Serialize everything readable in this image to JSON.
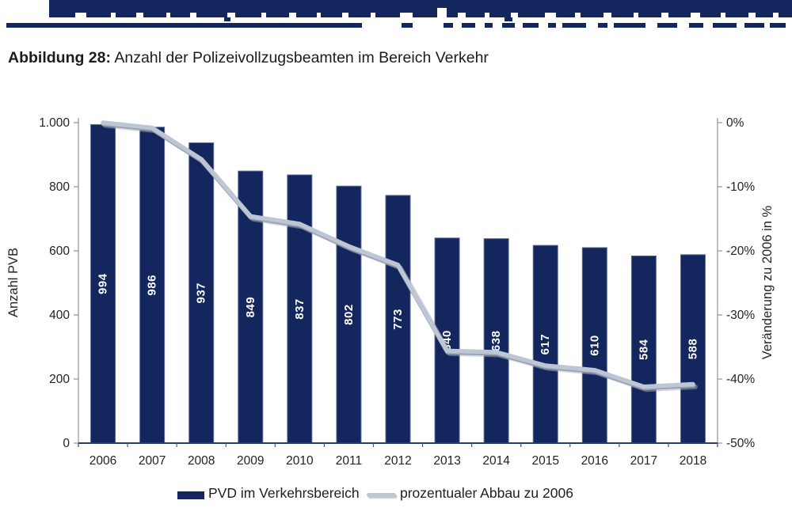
{
  "title": {
    "prefix": "Abbildung 28:",
    "text": "Anzahl der Polizeivollzugsbeamten im Bereich Verkehr"
  },
  "banner": {
    "color": "#14265e"
  },
  "chart_data": {
    "type": "bar+line",
    "title": "Anzahl der Polizeivollzugsbeamten im Bereich Verkehr",
    "categories": [
      "2006",
      "2007",
      "2008",
      "2009",
      "2010",
      "2011",
      "2012",
      "2013",
      "2014",
      "2015",
      "2016",
      "2017",
      "2018"
    ],
    "series": [
      {
        "name": "PVD im Verkehrsbereich",
        "type": "bar",
        "axis": "left",
        "color": "#14265e",
        "values": [
          994,
          986,
          937,
          849,
          837,
          802,
          773,
          640,
          638,
          617,
          610,
          584,
          588
        ],
        "data_label_style": "white bold, rotated 90°, inside center"
      },
      {
        "name": "prozentualer Abbau zu 2006",
        "type": "line",
        "axis": "right",
        "color": "#bdc6d4",
        "values_percent": [
          0,
          -0.8,
          -5.7,
          -14.6,
          -15.8,
          -19.3,
          -22.2,
          -35.6,
          -35.8,
          -37.9,
          -38.6,
          -41.2,
          -40.8
        ]
      }
    ],
    "left_axis": {
      "title": "Anzahl PVB",
      "min": 0,
      "max": 1000,
      "tick_labels": [
        "1.000",
        "800",
        "600",
        "400",
        "200",
        "0"
      ]
    },
    "right_axis": {
      "title": "Veränderung zu 2006 in %",
      "min": -50,
      "max": 0,
      "tick_labels": [
        "0%",
        "-10%",
        "-20%",
        "-30%",
        "-40%",
        "-50%"
      ]
    },
    "legend": {
      "position": "bottom",
      "items": [
        "PVD im Verkehrsbereich",
        "prozentualer Abbau zu 2006"
      ]
    },
    "grid": "off"
  },
  "colors": {
    "bar": "#14265e",
    "bar_edge": "#5d6b96",
    "line": "#bdc6d4",
    "line_shadow": "#a9aeb7",
    "line_edge": "#95a0b0",
    "axis_side": "#8e9399",
    "axis_bottom": "#2c3c64",
    "text": "#232323",
    "bar_label": "#ffffff"
  }
}
